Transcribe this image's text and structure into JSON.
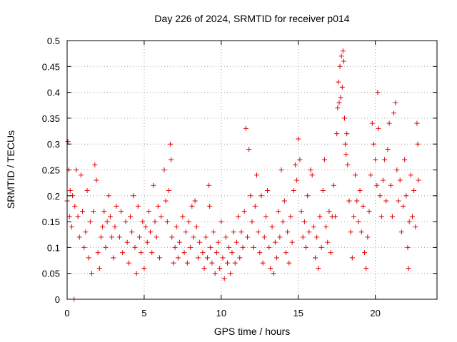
{
  "chart_data": {
    "type": "scatter",
    "title": "Day 226 of 2024, SRMTID for receiver p014",
    "xlabel": "GPS time / hours",
    "ylabel": "SRMTID / TECUs",
    "xlim": [
      0,
      24
    ],
    "ylim": [
      0,
      0.5
    ],
    "x_ticks": [
      0,
      5,
      10,
      15,
      20
    ],
    "x_tick_labels": [
      "0",
      "5",
      "10",
      "15",
      "20"
    ],
    "y_ticks": [
      0,
      0.05,
      0.1,
      0.15,
      0.2,
      0.25,
      0.3,
      0.35,
      0.4,
      0.45,
      0.5
    ],
    "y_tick_labels": [
      "0",
      "0.05",
      "0.1",
      "0.15",
      "0.2",
      "0.25",
      "0.3",
      "0.35",
      "0.4",
      "0.45",
      "0.5"
    ],
    "grid": true,
    "marker": "+",
    "series_color": "#e00000",
    "series": [
      {
        "name": "SRMTID",
        "points": [
          [
            0.0,
            0.19
          ],
          [
            0.05,
            0.305
          ],
          [
            0.1,
            0.25
          ],
          [
            0.15,
            0.16
          ],
          [
            0.2,
            0.21
          ],
          [
            0.3,
            0.14
          ],
          [
            0.35,
            0.2
          ],
          [
            0.45,
            0.0
          ],
          [
            0.5,
            0.18
          ],
          [
            0.6,
            0.25
          ],
          [
            0.7,
            0.16
          ],
          [
            0.8,
            0.12
          ],
          [
            0.9,
            0.24
          ],
          [
            1.0,
            0.17
          ],
          [
            1.1,
            0.1
          ],
          [
            1.2,
            0.13
          ],
          [
            1.3,
            0.21
          ],
          [
            1.4,
            0.08
          ],
          [
            1.5,
            0.15
          ],
          [
            1.6,
            0.05
          ],
          [
            1.7,
            0.17
          ],
          [
            1.8,
            0.26
          ],
          [
            1.9,
            0.23
          ],
          [
            2.0,
            0.09
          ],
          [
            2.1,
            0.06
          ],
          [
            2.2,
            0.12
          ],
          [
            2.3,
            0.14
          ],
          [
            2.4,
            0.17
          ],
          [
            2.5,
            0.1
          ],
          [
            2.6,
            0.15
          ],
          [
            2.7,
            0.2
          ],
          [
            2.8,
            0.16
          ],
          [
            2.9,
            0.12
          ],
          [
            3.0,
            0.08
          ],
          [
            3.1,
            0.14
          ],
          [
            3.2,
            0.18
          ],
          [
            3.4,
            0.12
          ],
          [
            3.5,
            0.17
          ],
          [
            3.6,
            0.09
          ],
          [
            3.8,
            0.15
          ],
          [
            3.9,
            0.11
          ],
          [
            4.0,
            0.07
          ],
          [
            4.1,
            0.16
          ],
          [
            4.2,
            0.13
          ],
          [
            4.3,
            0.2
          ],
          [
            4.4,
            0.1
          ],
          [
            4.5,
            0.05
          ],
          [
            4.6,
            0.18
          ],
          [
            4.7,
            0.12
          ],
          [
            4.8,
            0.09
          ],
          [
            4.9,
            0.15
          ],
          [
            5.0,
            0.06
          ],
          [
            5.1,
            0.14
          ],
          [
            5.2,
            0.11
          ],
          [
            5.3,
            0.17
          ],
          [
            5.4,
            0.13
          ],
          [
            5.5,
            0.09
          ],
          [
            5.6,
            0.22
          ],
          [
            5.7,
            0.15
          ],
          [
            5.8,
            0.12
          ],
          [
            5.9,
            0.18
          ],
          [
            6.0,
            0.08
          ],
          [
            6.1,
            0.16
          ],
          [
            6.3,
            0.25
          ],
          [
            6.4,
            0.19
          ],
          [
            6.5,
            0.15
          ],
          [
            6.6,
            0.21
          ],
          [
            6.7,
            0.3
          ],
          [
            6.75,
            0.27
          ],
          [
            6.8,
            0.12
          ],
          [
            6.9,
            0.07
          ],
          [
            7.0,
            0.1
          ],
          [
            7.1,
            0.14
          ],
          [
            7.2,
            0.08
          ],
          [
            7.3,
            0.11
          ],
          [
            7.5,
            0.16
          ],
          [
            7.6,
            0.09
          ],
          [
            7.7,
            0.13
          ],
          [
            7.8,
            0.07
          ],
          [
            7.9,
            0.15
          ],
          [
            8.0,
            0.1
          ],
          [
            8.1,
            0.18
          ],
          [
            8.2,
            0.12
          ],
          [
            8.3,
            0.19
          ],
          [
            8.4,
            0.14
          ],
          [
            8.5,
            0.08
          ],
          [
            8.6,
            0.11
          ],
          [
            8.8,
            0.09
          ],
          [
            8.9,
            0.06
          ],
          [
            9.0,
            0.12
          ],
          [
            9.1,
            0.08
          ],
          [
            9.2,
            0.22
          ],
          [
            9.25,
            0.18
          ],
          [
            9.3,
            0.1
          ],
          [
            9.4,
            0.07
          ],
          [
            9.5,
            0.13
          ],
          [
            9.6,
            0.05
          ],
          [
            9.7,
            0.09
          ],
          [
            9.8,
            0.11
          ],
          [
            9.9,
            0.06
          ],
          [
            10.0,
            0.15
          ],
          [
            10.1,
            0.08
          ],
          [
            10.2,
            0.04
          ],
          [
            10.3,
            0.12
          ],
          [
            10.4,
            0.07
          ],
          [
            10.5,
            0.1
          ],
          [
            10.6,
            0.05
          ],
          [
            10.7,
            0.09
          ],
          [
            10.8,
            0.13
          ],
          [
            10.9,
            0.07
          ],
          [
            11.0,
            0.11
          ],
          [
            11.1,
            0.16
          ],
          [
            11.2,
            0.08
          ],
          [
            11.3,
            0.13
          ],
          [
            11.4,
            0.1
          ],
          [
            11.5,
            0.17
          ],
          [
            11.6,
            0.33
          ],
          [
            11.7,
            0.12
          ],
          [
            11.8,
            0.29
          ],
          [
            11.9,
            0.2
          ],
          [
            12.0,
            0.15
          ],
          [
            12.1,
            0.1
          ],
          [
            12.2,
            0.18
          ],
          [
            12.3,
            0.24
          ],
          [
            12.4,
            0.13
          ],
          [
            12.5,
            0.09
          ],
          [
            12.6,
            0.2
          ],
          [
            12.7,
            0.07
          ],
          [
            12.8,
            0.12
          ],
          [
            12.9,
            0.16
          ],
          [
            13.0,
            0.21
          ],
          [
            13.1,
            0.1
          ],
          [
            13.2,
            0.06
          ],
          [
            13.3,
            0.14
          ],
          [
            13.4,
            0.05
          ],
          [
            13.5,
            0.11
          ],
          [
            13.6,
            0.08
          ],
          [
            13.7,
            0.17
          ],
          [
            13.8,
            0.12
          ],
          [
            13.9,
            0.25
          ],
          [
            14.0,
            0.15
          ],
          [
            14.1,
            0.19
          ],
          [
            14.2,
            0.09
          ],
          [
            14.3,
            0.13
          ],
          [
            14.4,
            0.07
          ],
          [
            14.5,
            0.16
          ],
          [
            14.6,
            0.11
          ],
          [
            14.7,
            0.21
          ],
          [
            14.8,
            0.26
          ],
          [
            14.9,
            0.23
          ],
          [
            15.0,
            0.31
          ],
          [
            15.1,
            0.27
          ],
          [
            15.2,
            0.17
          ],
          [
            15.3,
            0.12
          ],
          [
            15.4,
            0.15
          ],
          [
            15.5,
            0.1
          ],
          [
            15.6,
            0.2
          ],
          [
            15.7,
            0.13
          ],
          [
            15.8,
            0.25
          ],
          [
            15.9,
            0.24
          ],
          [
            16.0,
            0.14
          ],
          [
            16.1,
            0.08
          ],
          [
            16.2,
            0.12
          ],
          [
            16.3,
            0.06
          ],
          [
            16.4,
            0.16
          ],
          [
            16.5,
            0.1
          ],
          [
            16.6,
            0.21
          ],
          [
            16.7,
            0.27
          ],
          [
            16.8,
            0.14
          ],
          [
            16.9,
            0.11
          ],
          [
            17.0,
            0.17
          ],
          [
            17.1,
            0.09
          ],
          [
            17.2,
            0.16
          ],
          [
            17.3,
            0.22
          ],
          [
            17.4,
            0.16
          ],
          [
            17.5,
            0.32
          ],
          [
            17.55,
            0.37
          ],
          [
            17.6,
            0.42
          ],
          [
            17.65,
            0.38
          ],
          [
            17.7,
            0.45
          ],
          [
            17.75,
            0.39
          ],
          [
            17.8,
            0.47
          ],
          [
            17.85,
            0.41
          ],
          [
            17.9,
            0.48
          ],
          [
            17.95,
            0.46
          ],
          [
            18.0,
            0.35
          ],
          [
            18.05,
            0.3
          ],
          [
            18.1,
            0.28
          ],
          [
            18.15,
            0.32
          ],
          [
            18.2,
            0.26
          ],
          [
            18.3,
            0.19
          ],
          [
            18.4,
            0.13
          ],
          [
            18.5,
            0.08
          ],
          [
            18.6,
            0.16
          ],
          [
            18.7,
            0.24
          ],
          [
            18.8,
            0.19
          ],
          [
            18.9,
            0.15
          ],
          [
            19.0,
            0.21
          ],
          [
            19.1,
            0.13
          ],
          [
            19.2,
            0.18
          ],
          [
            19.3,
            0.09
          ],
          [
            19.4,
            0.06
          ],
          [
            19.5,
            0.12
          ],
          [
            19.6,
            0.17
          ],
          [
            19.7,
            0.24
          ],
          [
            19.8,
            0.34
          ],
          [
            19.9,
            0.3
          ],
          [
            20.0,
            0.27
          ],
          [
            20.1,
            0.22
          ],
          [
            20.15,
            0.4
          ],
          [
            20.2,
            0.33
          ],
          [
            20.3,
            0.2
          ],
          [
            20.4,
            0.16
          ],
          [
            20.5,
            0.23
          ],
          [
            20.6,
            0.27
          ],
          [
            20.7,
            0.19
          ],
          [
            20.8,
            0.29
          ],
          [
            20.9,
            0.34
          ],
          [
            21.0,
            0.22
          ],
          [
            21.1,
            0.16
          ],
          [
            21.2,
            0.36
          ],
          [
            21.3,
            0.38
          ],
          [
            21.4,
            0.25
          ],
          [
            21.5,
            0.19
          ],
          [
            21.6,
            0.23
          ],
          [
            21.7,
            0.13
          ],
          [
            21.8,
            0.18
          ],
          [
            21.9,
            0.27
          ],
          [
            22.0,
            0.2
          ],
          [
            22.1,
            0.1
          ],
          [
            22.15,
            0.06
          ],
          [
            22.2,
            0.15
          ],
          [
            22.3,
            0.24
          ],
          [
            22.4,
            0.16
          ],
          [
            22.5,
            0.21
          ],
          [
            22.6,
            0.14
          ],
          [
            22.7,
            0.34
          ],
          [
            22.75,
            0.3
          ],
          [
            22.8,
            0.23
          ]
        ]
      }
    ]
  }
}
